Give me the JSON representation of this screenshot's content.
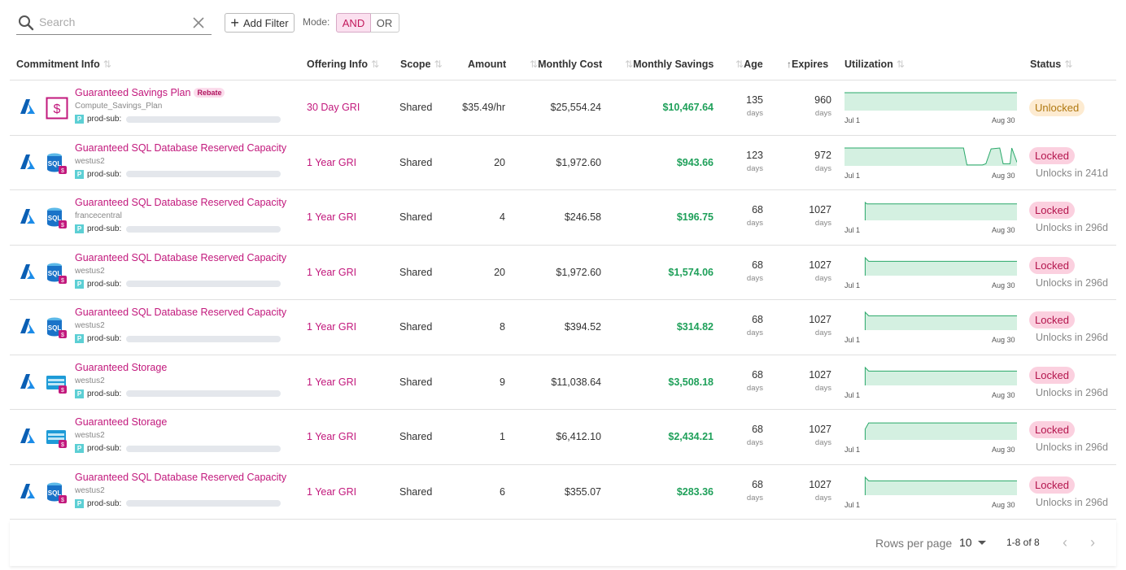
{
  "toolbar": {
    "search_placeholder": "Search",
    "add_filter_label": "Add Filter",
    "mode_label": "Mode:",
    "mode_and": "AND",
    "mode_or": "OR"
  },
  "columns": {
    "commitment_info": "Commitment Info",
    "offering_info": "Offering Info",
    "scope": "Scope",
    "amount": "Amount",
    "monthly_cost": "Monthly Cost",
    "monthly_savings": "Monthly Savings",
    "age": "Age",
    "expires": "Expires",
    "utilization": "Utilization",
    "status": "Status"
  },
  "colors": {
    "accent": "#c2187c",
    "savings": "#1fa05a",
    "spark_fill": "#d4f0e1",
    "spark_line": "#2aa86a",
    "locked_bg": "#fbd0df",
    "unlocked_bg": "#fdebd1"
  },
  "rows": [
    {
      "icon": "savings-plan-icon",
      "title": "Guaranteed Savings Plan",
      "badge": "Rebate",
      "subtitle": "Compute_Savings_Plan",
      "account": "prod-sub:",
      "offer": "30 Day GRI",
      "scope": "Shared",
      "amount": "$35.49/hr",
      "monthly_cost": "$25,554.24",
      "monthly_savings": "$10,467.64",
      "age": "135",
      "age_unit": "days",
      "expires": "960",
      "expires_unit": "days",
      "util_start": "Jul 1",
      "util_end": "Aug 30",
      "status": "Unlocked",
      "unlocks": "",
      "util": [
        {
          "t": 0,
          "v": 1
        },
        {
          "t": 1,
          "v": 1
        }
      ]
    },
    {
      "icon": "sql-database-icon",
      "title": "Guaranteed SQL Database Reserved Capacity",
      "badge": "",
      "subtitle": "westus2",
      "account": "prod-sub:",
      "offer": "1 Year GRI",
      "scope": "Shared",
      "amount": "20",
      "monthly_cost": "$1,972.60",
      "monthly_savings": "$943.66",
      "age": "123",
      "age_unit": "days",
      "expires": "972",
      "expires_unit": "days",
      "util_start": "Jul 1",
      "util_end": "Aug 30",
      "status": "Locked",
      "unlocks": "Unlocks in 241d",
      "util": [
        {
          "t": 0,
          "v": 1
        },
        {
          "t": 0.69,
          "v": 1
        },
        {
          "t": 0.71,
          "v": 0.05
        },
        {
          "t": 0.8,
          "v": 0.05
        },
        {
          "t": 0.82,
          "v": 0.12
        },
        {
          "t": 0.85,
          "v": 0.95
        },
        {
          "t": 0.9,
          "v": 1
        },
        {
          "t": 0.92,
          "v": 0.12
        },
        {
          "t": 0.96,
          "v": 0.12
        },
        {
          "t": 0.97,
          "v": 1
        },
        {
          "t": 1,
          "v": 0.2
        }
      ]
    },
    {
      "icon": "sql-database-icon",
      "title": "Guaranteed SQL Database Reserved Capacity",
      "badge": "",
      "subtitle": "francecentral",
      "account": "prod-sub:",
      "offer": "1 Year GRI",
      "scope": "Shared",
      "amount": "4",
      "monthly_cost": "$246.58",
      "monthly_savings": "$196.75",
      "age": "68",
      "age_unit": "days",
      "expires": "1027",
      "expires_unit": "days",
      "util_start": "Jul 1",
      "util_end": "Aug 30",
      "status": "Locked",
      "unlocks": "Unlocks in 296d",
      "util": [
        {
          "t": 0.12,
          "v": 0
        },
        {
          "t": 0.12,
          "v": 1
        },
        {
          "t": 0.13,
          "v": 0.92
        },
        {
          "t": 1,
          "v": 0.92
        }
      ]
    },
    {
      "icon": "sql-database-icon",
      "title": "Guaranteed SQL Database Reserved Capacity",
      "badge": "",
      "subtitle": "westus2",
      "account": "prod-sub:",
      "offer": "1 Year GRI",
      "scope": "Shared",
      "amount": "20",
      "monthly_cost": "$1,972.60",
      "monthly_savings": "$1,574.06",
      "age": "68",
      "age_unit": "days",
      "expires": "1027",
      "expires_unit": "days",
      "util_start": "Jul 1",
      "util_end": "Aug 30",
      "status": "Locked",
      "unlocks": "Unlocks in 296d",
      "util": [
        {
          "t": 0.12,
          "v": 0
        },
        {
          "t": 0.12,
          "v": 1
        },
        {
          "t": 0.14,
          "v": 0.8
        },
        {
          "t": 1,
          "v": 0.8
        }
      ]
    },
    {
      "icon": "sql-database-icon",
      "title": "Guaranteed SQL Database Reserved Capacity",
      "badge": "",
      "subtitle": "westus2",
      "account": "prod-sub:",
      "offer": "1 Year GRI",
      "scope": "Shared",
      "amount": "8",
      "monthly_cost": "$394.52",
      "monthly_savings": "$314.82",
      "age": "68",
      "age_unit": "days",
      "expires": "1027",
      "expires_unit": "days",
      "util_start": "Jul 1",
      "util_end": "Aug 30",
      "status": "Locked",
      "unlocks": "Unlocks in 296d",
      "util": [
        {
          "t": 0.12,
          "v": 0
        },
        {
          "t": 0.12,
          "v": 1
        },
        {
          "t": 0.14,
          "v": 0.8
        },
        {
          "t": 1,
          "v": 0.8
        }
      ]
    },
    {
      "icon": "storage-icon",
      "title": "Guaranteed Storage",
      "badge": "",
      "subtitle": "westus2",
      "account": "prod-sub:",
      "offer": "1 Year GRI",
      "scope": "Shared",
      "amount": "9",
      "monthly_cost": "$11,038.64",
      "monthly_savings": "$3,508.18",
      "age": "68",
      "age_unit": "days",
      "expires": "1027",
      "expires_unit": "days",
      "util_start": "Jul 1",
      "util_end": "Aug 30",
      "status": "Locked",
      "unlocks": "Unlocks in 296d",
      "util": [
        {
          "t": 0.12,
          "v": 0
        },
        {
          "t": 0.12,
          "v": 1
        },
        {
          "t": 0.14,
          "v": 0.8
        },
        {
          "t": 1,
          "v": 0.8
        }
      ]
    },
    {
      "icon": "storage-icon",
      "title": "Guaranteed Storage",
      "badge": "",
      "subtitle": "westus2",
      "account": "prod-sub:",
      "offer": "1 Year GRI",
      "scope": "Shared",
      "amount": "1",
      "monthly_cost": "$6,412.10",
      "monthly_savings": "$2,434.21",
      "age": "68",
      "age_unit": "days",
      "expires": "1027",
      "expires_unit": "days",
      "util_start": "Jul 1",
      "util_end": "Aug 30",
      "status": "Locked",
      "unlocks": "Unlocks in 296d",
      "util": [
        {
          "t": 0.12,
          "v": 0
        },
        {
          "t": 0.12,
          "v": 0.6
        },
        {
          "t": 0.14,
          "v": 0.95
        },
        {
          "t": 1,
          "v": 0.95
        }
      ]
    },
    {
      "icon": "sql-database-icon",
      "title": "Guaranteed SQL Database Reserved Capacity",
      "badge": "",
      "subtitle": "westus2",
      "account": "prod-sub:",
      "offer": "1 Year GRI",
      "scope": "Shared",
      "amount": "6",
      "monthly_cost": "$355.07",
      "monthly_savings": "$283.36",
      "age": "68",
      "age_unit": "days",
      "expires": "1027",
      "expires_unit": "days",
      "util_start": "Jul 1",
      "util_end": "Aug 30",
      "status": "Locked",
      "unlocks": "Unlocks in 296d",
      "util": [
        {
          "t": 0.12,
          "v": 0
        },
        {
          "t": 0.12,
          "v": 1
        },
        {
          "t": 0.14,
          "v": 0.8
        },
        {
          "t": 1,
          "v": 0.8
        }
      ]
    }
  ],
  "footer": {
    "rows_per_page_label": "Rows per page",
    "rows_per_page_value": "10",
    "range": "1-8 of 8",
    "prev_icon": "‹",
    "next_icon": "›"
  }
}
